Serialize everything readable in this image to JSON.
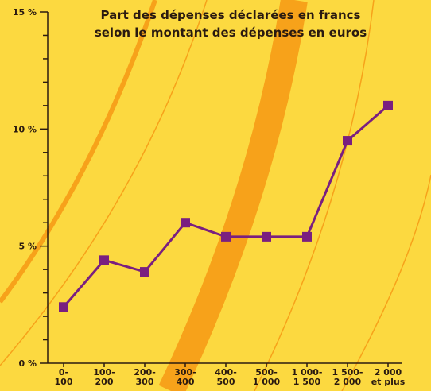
{
  "chart_data": {
    "type": "line",
    "title": [
      "Part des dépenses déclarées en francs",
      "selon le montant des dépenses en euros"
    ],
    "categories": [
      "0-\n100",
      "100-\n200",
      "200-\n300",
      "300-\n400",
      "400-\n500",
      "500-\n1 000",
      "1 000-\n1 500",
      "1 500-\n2 000",
      "2 000\net plus"
    ],
    "series": [
      {
        "color": "#7a1f80",
        "values": [
          2.4,
          4.4,
          3.9,
          6.0,
          5.4,
          5.4,
          5.4,
          9.5,
          11.0
        ]
      }
    ],
    "ylim": [
      0,
      15
    ],
    "yticks": [
      {
        "value": 0,
        "label": "0 %"
      },
      {
        "value": 5,
        "label": "5 %"
      },
      {
        "value": 10,
        "label": "10 %"
      },
      {
        "value": 15,
        "label": "15 %"
      }
    ],
    "yminorticks": [
      1,
      2,
      3,
      4,
      6,
      7,
      8,
      9,
      11,
      12,
      13,
      14
    ]
  }
}
